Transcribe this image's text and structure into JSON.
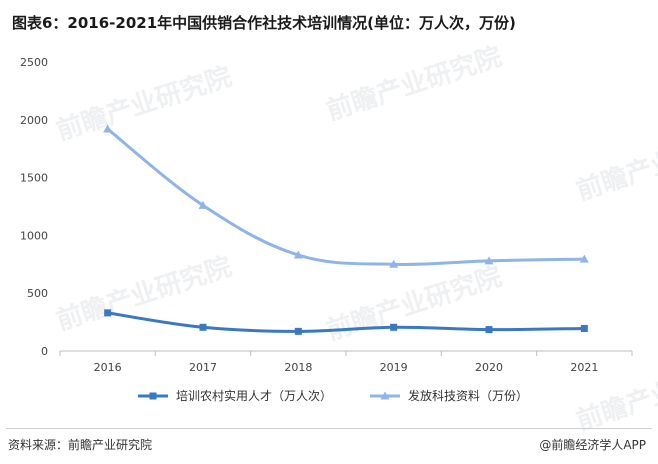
{
  "title": "图表6：2016-2021年中国供销合作社技术培训情况(单位：万人次，万份)",
  "source": "资料来源：前瞻产业研究院",
  "brand": "@前瞻经济学人APP",
  "watermark": "前瞻产业研究院",
  "chart_data": {
    "type": "line",
    "categories": [
      "2016",
      "2017",
      "2018",
      "2019",
      "2020",
      "2021"
    ],
    "ylim": [
      0,
      2500
    ],
    "yticks": [
      0,
      500,
      1000,
      1500,
      2000,
      2500
    ],
    "grid": false,
    "legend_position": "bottom",
    "series": [
      {
        "name": "培训农村实用人才（万人次）",
        "values": [
          330,
          205,
          170,
          205,
          185,
          195
        ],
        "color": "#3a78c2",
        "marker": "square"
      },
      {
        "name": "发放科技资料（万份）",
        "values": [
          1920,
          1260,
          830,
          750,
          780,
          795
        ],
        "color": "#8fb4e6",
        "marker": "triangle"
      }
    ]
  }
}
